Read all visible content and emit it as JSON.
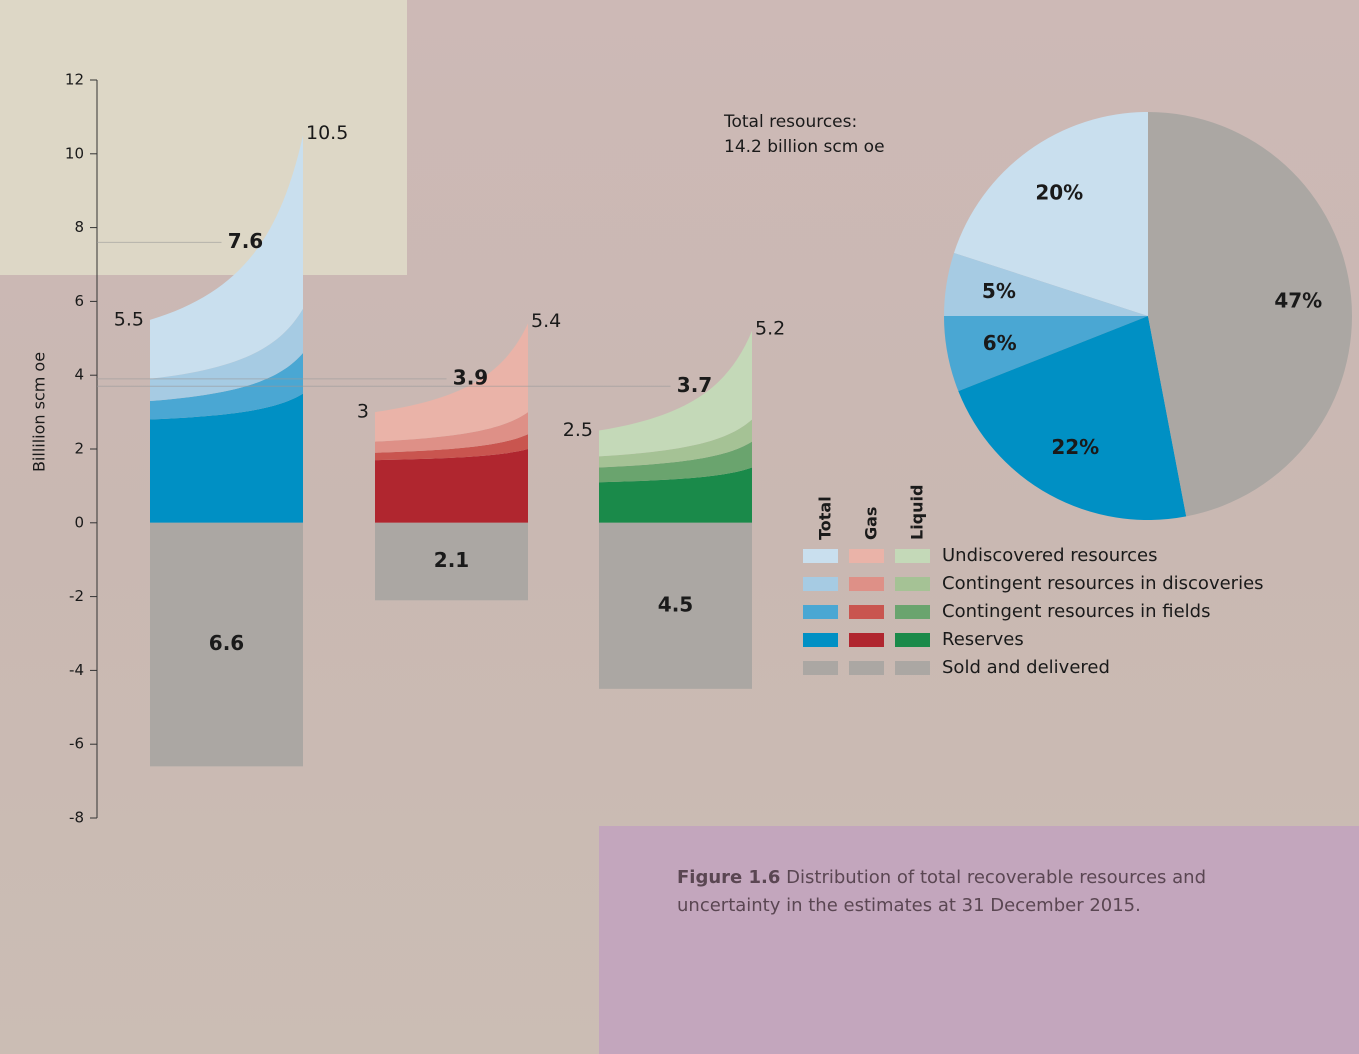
{
  "chart_data": [
    {
      "type": "uncertainty-columns",
      "y_label": "Billilion scm oe",
      "ylim": [
        -8,
        12
      ],
      "yticks": [
        -8,
        -6,
        -4,
        -2,
        0,
        2,
        4,
        6,
        8,
        10,
        12
      ],
      "layers": [
        "Undiscovered resources",
        "Contingent resources in discoveries",
        "Contingent resources in fields",
        "Reserves",
        "Sold and delivered"
      ],
      "columns": [
        {
          "name": "Total",
          "colors": [
            "#c9dfee",
            "#a6cbe3",
            "#4aa7d3",
            "#0090c4",
            "#aba7a3"
          ],
          "start": [
            1.6,
            0.6,
            0.5,
            2.8
          ],
          "end": [
            4.7,
            1.2,
            1.1,
            3.5
          ],
          "low": 5.5,
          "expected": 7.6,
          "high": 10.5,
          "sold": 6.6
        },
        {
          "name": "Gas",
          "colors": [
            "#eab3a8",
            "#de9087",
            "#c9554f",
            "#b0262f",
            "#aba7a3"
          ],
          "start": [
            0.8,
            0.3,
            0.2,
            1.7
          ],
          "end": [
            2.4,
            0.6,
            0.4,
            2.0
          ],
          "low": 3.0,
          "expected": 3.9,
          "high": 5.4,
          "sold": 2.1
        },
        {
          "name": "Liquid",
          "colors": [
            "#c4d9b8",
            "#a5c295",
            "#6aa46e",
            "#1a8a4a",
            "#aba7a3"
          ],
          "start": [
            0.7,
            0.3,
            0.4,
            1.1
          ],
          "end": [
            2.4,
            0.6,
            0.7,
            1.5
          ],
          "low": 2.5,
          "expected": 3.7,
          "high": 5.2,
          "sold": 4.5
        }
      ]
    },
    {
      "type": "pie",
      "title": [
        "Total resources:",
        "14.2 billion scm oe"
      ],
      "values": [
        20,
        5,
        6,
        22,
        47
      ],
      "value_labels": [
        "20%",
        "5%",
        "6%",
        "22%",
        "47%"
      ],
      "colors": [
        "#c9dfee",
        "#a6cbe3",
        "#4aa7d3",
        "#0090c4",
        "#aba7a3"
      ]
    }
  ],
  "caption": {
    "label": "Figure 1.6",
    "text": "Distribution of total recoverable resources and uncertainty in the estimates at 31 December 2015."
  }
}
